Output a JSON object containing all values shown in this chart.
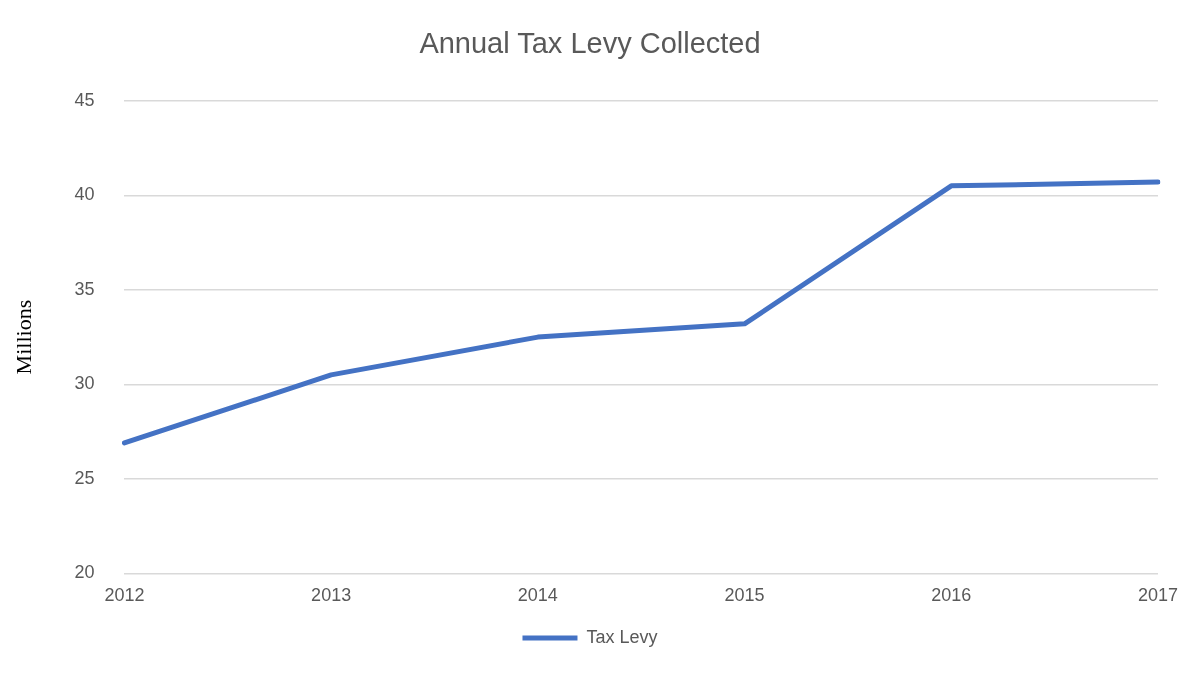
{
  "chart_data": {
    "type": "line",
    "title": "Annual Tax Levy Collected",
    "ylabel": "Millions",
    "categories": [
      "2012",
      "2013",
      "2014",
      "2015",
      "2016",
      "2017"
    ],
    "series": [
      {
        "name": "Tax Levy",
        "color": "#4472c4",
        "values": [
          26.9,
          30.5,
          32.5,
          33.2,
          40.5,
          40.7
        ]
      }
    ],
    "ylim": [
      20,
      45
    ],
    "yticks": [
      20,
      25,
      30,
      35,
      40,
      45
    ],
    "grid": "y",
    "legend": "bottom",
    "marker": "none",
    "line_style": "solid"
  }
}
